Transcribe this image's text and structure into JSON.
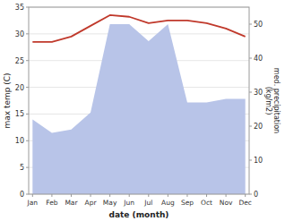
{
  "chart_data": {
    "type": "line",
    "categories": [
      "Jan",
      "Feb",
      "Mar",
      "Apr",
      "May",
      "Jun",
      "Jul",
      "Aug",
      "Sep",
      "Oct",
      "Nov",
      "Dec"
    ],
    "series": [
      {
        "type": "area",
        "axis": "y2",
        "color": "#b8c4e8",
        "values": [
          22,
          18,
          19,
          24,
          50,
          50,
          45,
          50,
          27,
          27,
          28,
          28
        ]
      },
      {
        "type": "line",
        "color": "#c0392b",
        "values": [
          28.5,
          28.5,
          29.5,
          31.5,
          33.5,
          33.2,
          32.0,
          32.5,
          32.5,
          32.0,
          31.0,
          29.5
        ]
      }
    ],
    "xlabel": "date (month)",
    "ylabel": "max temp (C)",
    "y2label": "med. precipitation\n(kg/m2)",
    "ylim": [
      0,
      35
    ],
    "yticks": [
      0,
      5,
      10,
      15,
      20,
      25,
      30,
      35
    ],
    "y2lim": [
      0,
      55
    ],
    "y2ticks": [
      0,
      10,
      20,
      30,
      40,
      50
    ],
    "grid": true
  }
}
